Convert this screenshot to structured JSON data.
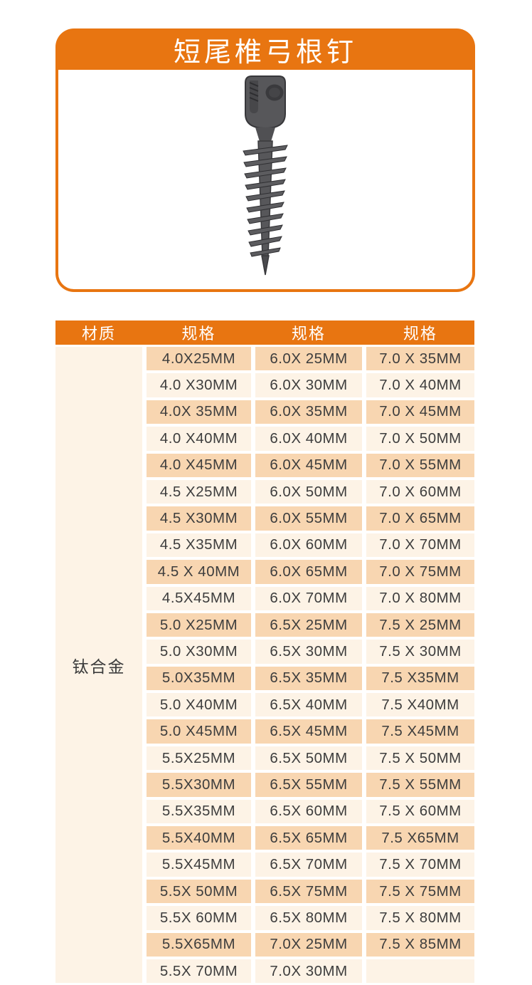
{
  "colors": {
    "accent_orange": "#e87511",
    "row_dark": "#f8d6b1",
    "row_light": "#fdf3e6",
    "text_dark": "#3d3d3d",
    "header_text": "#ffffff"
  },
  "product_card": {
    "title": "短尾椎弓根钉",
    "image": "pedicle-screw-photo"
  },
  "spec_table": {
    "headers": [
      "材质",
      "规格",
      "规格",
      "规格"
    ],
    "material": "钛合金",
    "columns": [
      {
        "specs": [
          "4.0X25MM",
          "4.0 X30MM",
          "4.0X 35MM",
          "4.0 X40MM",
          "4.0 X45MM",
          "4.5 X25MM",
          "4.5 X30MM",
          "4.5 X35MM",
          "4.5 X 40MM",
          "4.5X45MM",
          "5.0 X25MM",
          "5.0 X30MM",
          "5.0X35MM",
          "5.0 X40MM",
          "5.0 X45MM",
          "5.5X25MM",
          "5.5X30MM",
          "5.5X35MM",
          "5.5X40MM",
          "5.5X45MM",
          "5.5X 50MM",
          "5.5X 60MM",
          "5.5X65MM",
          "5.5X 70MM"
        ]
      },
      {
        "specs": [
          "6.0X 25MM",
          "6.0X 30MM",
          "6.0X 35MM",
          "6.0X 40MM",
          "6.0X 45MM",
          "6.0X 50MM",
          "6.0X 55MM",
          "6.0X 60MM",
          "6.0X 65MM",
          "6.0X 70MM",
          "6.5X 25MM",
          "6.5X 30MM",
          "6.5X 35MM",
          "6.5X 40MM",
          "6.5X 45MM",
          "6.5X 50MM",
          "6.5X 55MM",
          "6.5X 60MM",
          "6.5X 65MM",
          "6.5X 70MM",
          "6.5X 75MM",
          "6.5X 80MM",
          "7.0X 25MM",
          "7.0X 30MM"
        ]
      },
      {
        "specs": [
          "7.0 X 35MM",
          "7.0 X 40MM",
          "7.0 X 45MM",
          "7.0 X 50MM",
          "7.0 X 55MM",
          "7.0 X 60MM",
          "7.0 X 65MM",
          "7.0 X 70MM",
          "7.0 X 75MM",
          "7.0 X 80MM",
          "7.5 X 25MM",
          "7.5 X 30MM",
          "7.5 X35MM",
          "7.5 X40MM",
          "7.5 X45MM",
          "7.5 X 50MM",
          "7.5 X 55MM",
          "7.5 X 60MM",
          "7.5 X65MM",
          "7.5 X 70MM",
          "7.5 X 75MM",
          "7.5 X 80MM",
          "7.5 X 85MM",
          ""
        ]
      }
    ]
  }
}
